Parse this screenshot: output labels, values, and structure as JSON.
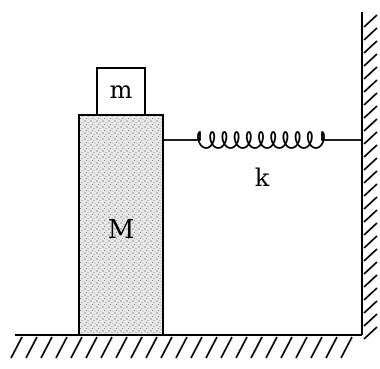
{
  "diagram": {
    "labels": {
      "small_block": "m",
      "large_block": "M",
      "spring": "k"
    },
    "colors": {
      "stroke": "#000000",
      "block_fill": "#e9e9e9",
      "speckle": "#555555"
    }
  }
}
